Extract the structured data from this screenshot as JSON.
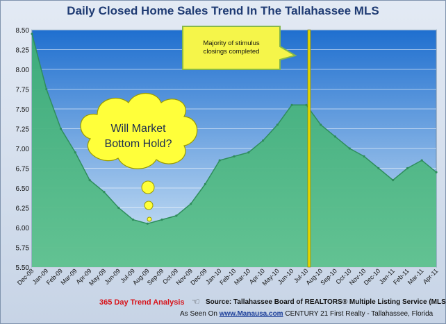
{
  "title": "Daily Closed Home Sales Trend In The Tallahassee MLS",
  "footer": {
    "trend_label": "365 Day Trend Analysis",
    "source": "Source: Tallahassee Board of REALTORS® Multiple Listing Service (MLS)",
    "seen_prefix": "As Seen On",
    "site": "www.Manausa.com",
    "seen_suffix": "CENTURY 21 First Realty - Tallahassee, Florida"
  },
  "annotations": {
    "callout": {
      "lines": [
        "Majority of stimulus",
        "closings completed"
      ],
      "x": "Jul-10"
    },
    "thought": {
      "lines": [
        "Will Market",
        "Bottom Hold?"
      ]
    }
  },
  "colors": {
    "plot_top": "#1f6fcf",
    "plot_bottom": "#d9ebf8",
    "area": "#3fae77",
    "area_light": "#5cc08d",
    "callout_fill": "#f5f54a",
    "callout_border": "#86b84a",
    "thought_fill": "#ffff3a",
    "thought_border": "#9a9a00",
    "marker": "#e2d600"
  },
  "chart_data": {
    "type": "area",
    "title": "Daily Closed Home Sales Trend In The Tallahassee MLS",
    "xlabel": "",
    "ylabel": "",
    "ylim": [
      5.5,
      8.5
    ],
    "yticks": [
      "5.50",
      "5.75",
      "6.00",
      "6.25",
      "6.50",
      "6.75",
      "7.00",
      "7.25",
      "7.50",
      "7.75",
      "8.00",
      "8.25",
      "8.50"
    ],
    "grid": true,
    "legend": "none",
    "categories": [
      "Dec-08",
      "Jan-09",
      "Feb-09",
      "Mar-09",
      "Apr-09",
      "May-09",
      "Jun-09",
      "Jul-09",
      "Aug-09",
      "Sep-09",
      "Oct-09",
      "Nov-09",
      "Dec-09",
      "Jan-10",
      "Feb-10",
      "Mar-10",
      "Apr-10",
      "May-10",
      "Jun-10",
      "Jul-10",
      "Aug-10",
      "Sep-10",
      "Oct-10",
      "Nov-10",
      "Dec-10",
      "Jan-11",
      "Feb-11",
      "Mar-11",
      "Apr-11"
    ],
    "values": [
      8.45,
      7.75,
      7.25,
      6.95,
      6.6,
      6.45,
      6.25,
      6.1,
      6.05,
      6.1,
      6.15,
      6.3,
      6.55,
      6.85,
      6.9,
      6.95,
      7.1,
      7.3,
      7.55,
      7.55,
      7.3,
      7.15,
      7.0,
      6.9,
      6.75,
      6.6,
      6.75,
      6.85,
      6.7
    ]
  }
}
